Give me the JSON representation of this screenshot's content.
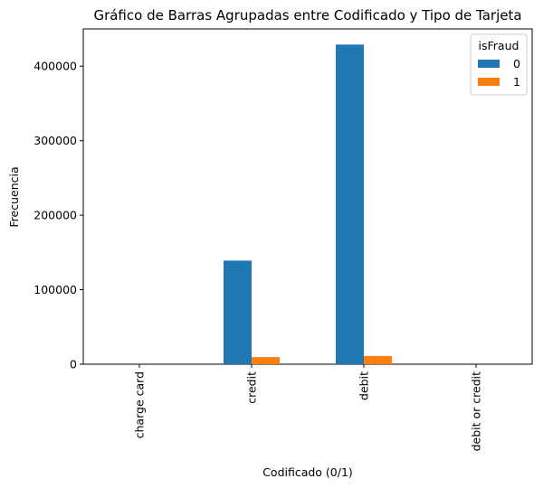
{
  "chart_data": {
    "type": "bar",
    "title": "Gráfico de Barras Agrupadas entre Codificado y Tipo de Tarjeta",
    "xlabel": "Codificado (0/1)",
    "ylabel": "Frecuencia",
    "categories": [
      "charge card",
      "credit",
      "debit",
      "debit or credit"
    ],
    "series": [
      {
        "name": "0",
        "color": "#1f77b4",
        "values": [
          0,
          139000,
          429000,
          0
        ]
      },
      {
        "name": "1",
        "color": "#ff7f0e",
        "values": [
          0,
          9500,
          11000,
          0
        ]
      }
    ],
    "ylim": [
      0,
      450000
    ],
    "yticks": [
      0,
      100000,
      200000,
      300000,
      400000
    ],
    "ytick_labels": [
      "0",
      "100000",
      "200000",
      "300000",
      "400000"
    ],
    "grid": false,
    "legend": {
      "title": "isFraud",
      "position": "top-right"
    }
  }
}
